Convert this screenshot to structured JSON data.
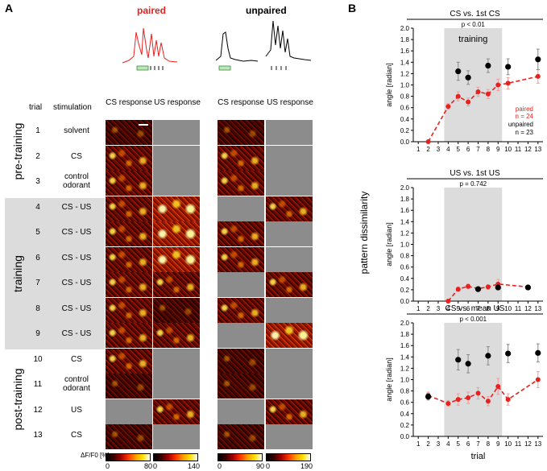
{
  "panel_a": {
    "letter": "A",
    "paired_label": "paired",
    "unpaired_label": "unpaired",
    "col_trial": "trial",
    "col_stimulation": "stimulation",
    "col_cs_paired": "CS response",
    "col_us_paired": "US response",
    "col_cs_unpaired": "CS response",
    "col_us_unpaired": "US response",
    "phases": [
      "pre-training",
      "training",
      "post-training"
    ],
    "trials": [
      {
        "n": "1",
        "stim": "solvent"
      },
      {
        "n": "2",
        "stim": "CS"
      },
      {
        "n": "3",
        "stim": "control odorant"
      },
      {
        "n": "4",
        "stim": "CS - US"
      },
      {
        "n": "5",
        "stim": "CS - US"
      },
      {
        "n": "6",
        "stim": "CS - US"
      },
      {
        "n": "7",
        "stim": "CS - US"
      },
      {
        "n": "8",
        "stim": "CS - US"
      },
      {
        "n": "9",
        "stim": "CS - US"
      },
      {
        "n": "10",
        "stim": "CS"
      },
      {
        "n": "11",
        "stim": "control odorant"
      },
      {
        "n": "12",
        "stim": "US"
      },
      {
        "n": "13",
        "stim": "CS"
      }
    ],
    "scale_label": "ΔF/F0 [%]:",
    "scales": [
      {
        "min": "0",
        "max": "80"
      },
      {
        "min": "0",
        "max": "140"
      },
      {
        "min": "0",
        "max": "90"
      },
      {
        "min": "0",
        "max": "190"
      }
    ]
  },
  "panel_b": {
    "letter": "B",
    "ylabel_shared": "pattern dissimilarity",
    "xlabel": "trial",
    "training_label": "training",
    "legend_paired": "paired",
    "legend_paired_n": "n = 24",
    "legend_unpaired": "unpaired",
    "legend_unpaired_n": "n = 23"
  },
  "chart_data": [
    {
      "type": "line",
      "title": "CS vs. 1st CS",
      "pvalue": "p < 0.01",
      "ylabel": "angle [radian]",
      "xlabel": "",
      "ylim": [
        0,
        2.0
      ],
      "xlim": [
        1,
        13
      ],
      "yticks": [
        "0.0",
        "0.2",
        "0.4",
        "0.6",
        "0.8",
        "1.0",
        "1.2",
        "1.4",
        "1.6",
        "1.8",
        "2.0"
      ],
      "xticks": [
        "1",
        "2",
        "3",
        "4",
        "5",
        "6",
        "7",
        "8",
        "9",
        "10",
        "11",
        "12",
        "13"
      ],
      "training_range": [
        3.6,
        9.4
      ],
      "series": [
        {
          "name": "paired",
          "color": "#e8211f",
          "x": [
            2,
            4,
            5,
            6,
            7,
            8,
            9,
            10,
            13
          ],
          "values": [
            0.0,
            0.62,
            0.8,
            0.7,
            0.88,
            0.84,
            1.0,
            1.03,
            1.15
          ],
          "err": [
            0,
            0.05,
            0.08,
            0.07,
            0.08,
            0.08,
            0.1,
            0.1,
            0.12
          ]
        },
        {
          "name": "unpaired",
          "color": "#000000",
          "x": [
            5,
            6,
            8,
            10,
            13
          ],
          "values": [
            1.24,
            1.13,
            1.34,
            1.32,
            1.45
          ],
          "err": [
            0.16,
            0.12,
            0.12,
            0.14,
            0.18
          ]
        }
      ]
    },
    {
      "type": "line",
      "title": "US vs. 1st US",
      "pvalue": "p = 0.742",
      "ylabel": "angle [radian]",
      "xlabel": "",
      "ylim": [
        0,
        2.0
      ],
      "xlim": [
        1,
        13
      ],
      "yticks": [
        "0.0",
        "0.2",
        "0.4",
        "0.6",
        "0.8",
        "1.0",
        "1.2",
        "1.4",
        "1.6",
        "1.8",
        "2.0"
      ],
      "xticks": [
        "1",
        "2",
        "3",
        "4",
        "5",
        "6",
        "7",
        "8",
        "9",
        "10",
        "11",
        "12",
        "13"
      ],
      "training_range": [
        3.6,
        9.4
      ],
      "series": [
        {
          "name": "paired",
          "color": "#e8211f",
          "x": [
            4,
            5,
            6,
            7,
            8,
            9,
            12
          ],
          "values": [
            0.0,
            0.21,
            0.26,
            0.22,
            0.25,
            0.3,
            0.25
          ],
          "err": [
            0,
            0.04,
            0.04,
            0.04,
            0.04,
            0.08,
            0.03
          ]
        },
        {
          "name": "unpaired",
          "color": "#000000",
          "x": [
            7,
            9,
            12
          ],
          "values": [
            0.21,
            0.24,
            0.24
          ],
          "err": [
            0.03,
            0.04,
            0.03
          ]
        }
      ]
    },
    {
      "type": "line",
      "title": "CS vs. mean US",
      "pvalue": "p < 0.001",
      "ylabel": "angle [radian]",
      "xlabel": "trial",
      "ylim": [
        0,
        2.0
      ],
      "xlim": [
        1,
        13
      ],
      "yticks": [
        "0.0",
        "0.2",
        "0.4",
        "0.6",
        "0.8",
        "1.0",
        "1.2",
        "1.4",
        "1.6",
        "1.8",
        "2.0"
      ],
      "xticks": [
        "1",
        "2",
        "3",
        "4",
        "5",
        "6",
        "7",
        "8",
        "9",
        "10",
        "11",
        "12",
        "13"
      ],
      "training_range": [
        3.6,
        9.4
      ],
      "series": [
        {
          "name": "paired",
          "color": "#e8211f",
          "x": [
            2,
            4,
            5,
            6,
            7,
            8,
            9,
            10,
            13
          ],
          "values": [
            0.72,
            0.58,
            0.65,
            0.68,
            0.76,
            0.62,
            0.88,
            0.65,
            1.0
          ],
          "err": [
            0.06,
            0.05,
            0.1,
            0.1,
            0.1,
            0.08,
            0.14,
            0.1,
            0.14
          ]
        },
        {
          "name": "unpaired",
          "color": "#000000",
          "x": [
            2,
            5,
            6,
            8,
            10,
            13
          ],
          "values": [
            0.7,
            1.35,
            1.28,
            1.42,
            1.46,
            1.47
          ],
          "err": [
            0.06,
            0.18,
            0.16,
            0.16,
            0.16,
            0.16
          ]
        }
      ]
    }
  ]
}
